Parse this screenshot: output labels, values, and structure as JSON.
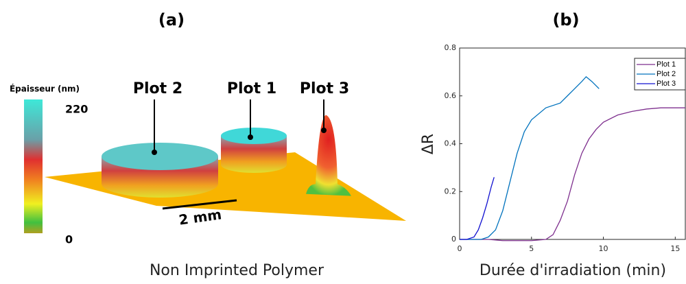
{
  "panel_a": {
    "label": "(a)",
    "colorbar_title": "Épaisseur (nm)",
    "colorbar_top": "220",
    "colorbar_bottom": "0",
    "plots": [
      "Plot 2",
      "Plot 1",
      "Plot 3"
    ],
    "scale_bar": "2 mm",
    "caption": "Non Imprinted Polymer"
  },
  "chart_data": {
    "type": "line",
    "title": "(b)",
    "x_label": "Durée d'irradiation (min)",
    "y_label": "ΔR",
    "xlim": [
      0,
      15.7
    ],
    "ylim": [
      0,
      0.8
    ],
    "xticks": [
      0,
      5,
      10,
      15
    ],
    "yticks": [
      0,
      0.2,
      0.4,
      0.6,
      0.8
    ],
    "legend": "upper right",
    "series": [
      {
        "name": "Plot 1",
        "color": "#7e2f8e",
        "x": [
          0,
          1,
          2,
          3,
          4,
          5,
          6,
          6.5,
          7,
          7.5,
          8,
          8.5,
          9,
          9.5,
          10,
          11,
          12,
          13,
          14,
          15,
          15.7
        ],
        "values": [
          0,
          0,
          0,
          -0.005,
          -0.005,
          -0.005,
          0,
          0.02,
          0.08,
          0.16,
          0.27,
          0.36,
          0.42,
          0.46,
          0.49,
          0.52,
          0.535,
          0.545,
          0.55,
          0.55,
          0.55
        ]
      },
      {
        "name": "Plot 2",
        "color": "#0072bd",
        "x": [
          0,
          1,
          1.5,
          2,
          2.5,
          3,
          3.5,
          4,
          4.5,
          5,
          6,
          7,
          7.5,
          8,
          8.5,
          8.8,
          9.2,
          9.7
        ],
        "values": [
          0,
          0,
          0,
          0.01,
          0.04,
          0.12,
          0.24,
          0.36,
          0.45,
          0.5,
          0.55,
          0.57,
          0.6,
          0.63,
          0.66,
          0.68,
          0.66,
          0.63
        ]
      },
      {
        "name": "Plot 3",
        "color": "#1010d0",
        "x": [
          0,
          0.5,
          1,
          1.3,
          1.6,
          1.9,
          2.2,
          2.4
        ],
        "values": [
          0,
          0,
          0.01,
          0.04,
          0.09,
          0.15,
          0.22,
          0.26
        ]
      }
    ]
  }
}
